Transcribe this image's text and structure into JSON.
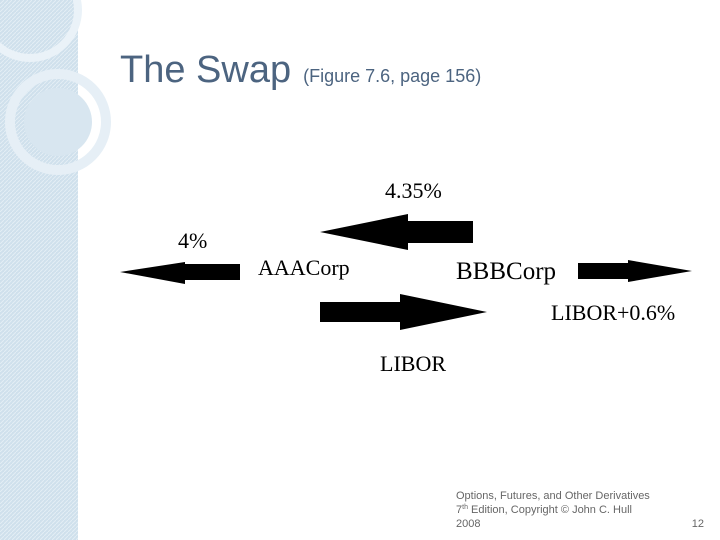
{
  "header": {
    "title": "The Swap",
    "subtitle": "(Figure 7.6, page 156)"
  },
  "nodes": [
    {
      "label": "AAACorp"
    },
    {
      "label": "BBBCorp"
    }
  ],
  "flows": [
    {
      "label": "4.35%"
    },
    {
      "label": "4%"
    },
    {
      "label": "LIBOR+0.6%"
    },
    {
      "label": "LIBOR"
    }
  ],
  "footer": {
    "line1": "Options, Futures, and Other Derivatives",
    "edition_number": "7",
    "edition_suffix": "th",
    "line2_rest": " Edition, Copyright © John C. Hull",
    "line3": "2008",
    "page_number": "12"
  }
}
